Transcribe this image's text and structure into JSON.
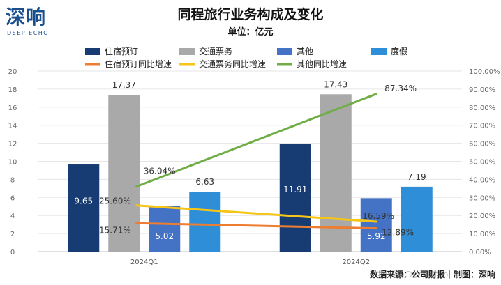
{
  "brand": {
    "cn": "深响",
    "en": "DEEP ECHO",
    "color": "#1a4f8e",
    "watermark": "深响DeepEcho"
  },
  "chart_data": {
    "type": "bar",
    "title": "同程旅行业务构成及变化",
    "subtitle": "单位：亿元",
    "categories": [
      "2024Q1",
      "2024Q2"
    ],
    "ylim": [
      0,
      20
    ],
    "y_ticks": [
      0,
      2,
      4,
      6,
      8,
      10,
      12,
      14,
      16,
      18,
      20
    ],
    "y2lim": [
      0,
      100
    ],
    "y2_ticks": [
      "0.00%",
      "10.00%",
      "20.00%",
      "30.00%",
      "40.00%",
      "50.00%",
      "60.00%",
      "70.00%",
      "80.00%",
      "90.00%",
      "100.00%"
    ],
    "legend_position": "top",
    "series": [
      {
        "name": "住宿预订",
        "kind": "bar",
        "color": "#173c73",
        "values": [
          9.65,
          11.91
        ],
        "labels": [
          "9.65",
          "11.91"
        ]
      },
      {
        "name": "交通票务",
        "kind": "bar",
        "color": "#a9a9a9",
        "values": [
          17.37,
          17.43
        ],
        "labels": [
          "17.37",
          "17.43"
        ]
      },
      {
        "name": "其他",
        "kind": "bar",
        "color": "#4472c4",
        "values": [
          5.02,
          5.92
        ],
        "labels": [
          "5.02",
          "5.92"
        ]
      },
      {
        "name": "度假",
        "kind": "bar",
        "color": "#2e8fd8",
        "values": [
          6.63,
          7.19
        ],
        "labels": [
          "6.63",
          "7.19"
        ]
      },
      {
        "name": "住宿预订同比增速",
        "kind": "line",
        "color": "#ed7d31",
        "values": [
          15.71,
          12.89
        ],
        "labels": [
          "15.71%",
          "12.89%"
        ]
      },
      {
        "name": "交通票务同比增速",
        "kind": "line",
        "color": "#f5c518",
        "values": [
          25.6,
          16.59
        ],
        "labels": [
          "25.60%",
          "16.59%"
        ]
      },
      {
        "name": "其他同比增速",
        "kind": "line",
        "color": "#70ad47",
        "values": [
          36.04,
          87.34
        ],
        "labels": [
          "36.04%",
          "87.34%"
        ]
      }
    ],
    "source": "数据来源：公司财报｜制图：深响"
  }
}
